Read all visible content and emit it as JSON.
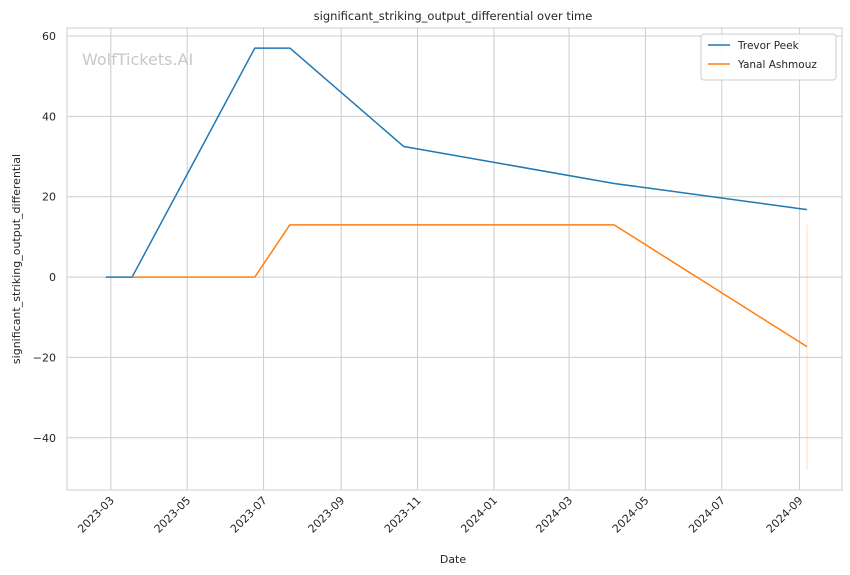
{
  "chart_data": {
    "type": "line",
    "title": "significant_striking_output_differential over time",
    "xlabel": "Date",
    "ylabel": "significant_striking_output_differential",
    "watermark": "WolfTickets.AI",
    "xlim": [
      "2023-01-25",
      "2024-10-05"
    ],
    "ylim": [
      -53,
      62
    ],
    "x_ticks": [
      {
        "date": "2023-03-01",
        "label": "2023-03"
      },
      {
        "date": "2023-05-01",
        "label": "2023-05"
      },
      {
        "date": "2023-07-01",
        "label": "2023-07"
      },
      {
        "date": "2023-09-01",
        "label": "2023-09"
      },
      {
        "date": "2023-11-01",
        "label": "2023-11"
      },
      {
        "date": "2024-01-01",
        "label": "2024-01"
      },
      {
        "date": "2024-03-01",
        "label": "2024-03"
      },
      {
        "date": "2024-05-01",
        "label": "2024-05"
      },
      {
        "date": "2024-07-01",
        "label": "2024-07"
      },
      {
        "date": "2024-09-01",
        "label": "2024-09"
      }
    ],
    "y_ticks": [
      {
        "value": 60,
        "label": "60"
      },
      {
        "value": 40,
        "label": "40"
      },
      {
        "value": 20,
        "label": "20"
      },
      {
        "value": 0,
        "label": "0"
      },
      {
        "value": -20,
        "label": "−20"
      },
      {
        "value": -40,
        "label": "−40"
      }
    ],
    "grid": true,
    "legend_position": "top-right",
    "series": [
      {
        "name": "Trevor Peek",
        "color": "#1f77b4",
        "points": [
          {
            "x": "2023-02-25",
            "y": 0
          },
          {
            "x": "2023-03-18",
            "y": 0
          },
          {
            "x": "2023-06-24",
            "y": 57
          },
          {
            "x": "2023-07-22",
            "y": 57
          },
          {
            "x": "2023-10-21",
            "y": 32.5
          },
          {
            "x": "2024-04-06",
            "y": 23.3
          },
          {
            "x": "2024-09-07",
            "y": 16.8
          }
        ]
      },
      {
        "name": "Yanal Ashmouz",
        "color": "#ff7f0e",
        "points": [
          {
            "x": "2023-03-18",
            "y": 0
          },
          {
            "x": "2023-06-24",
            "y": 0
          },
          {
            "x": "2023-07-22",
            "y": 13
          },
          {
            "x": "2024-04-06",
            "y": 13
          },
          {
            "x": "2024-09-07",
            "y": -17.3
          }
        ]
      }
    ],
    "error_band": {
      "color": "#ff7f0e",
      "x": "2024-09-07",
      "y_low": -48,
      "y_high": 13
    }
  }
}
